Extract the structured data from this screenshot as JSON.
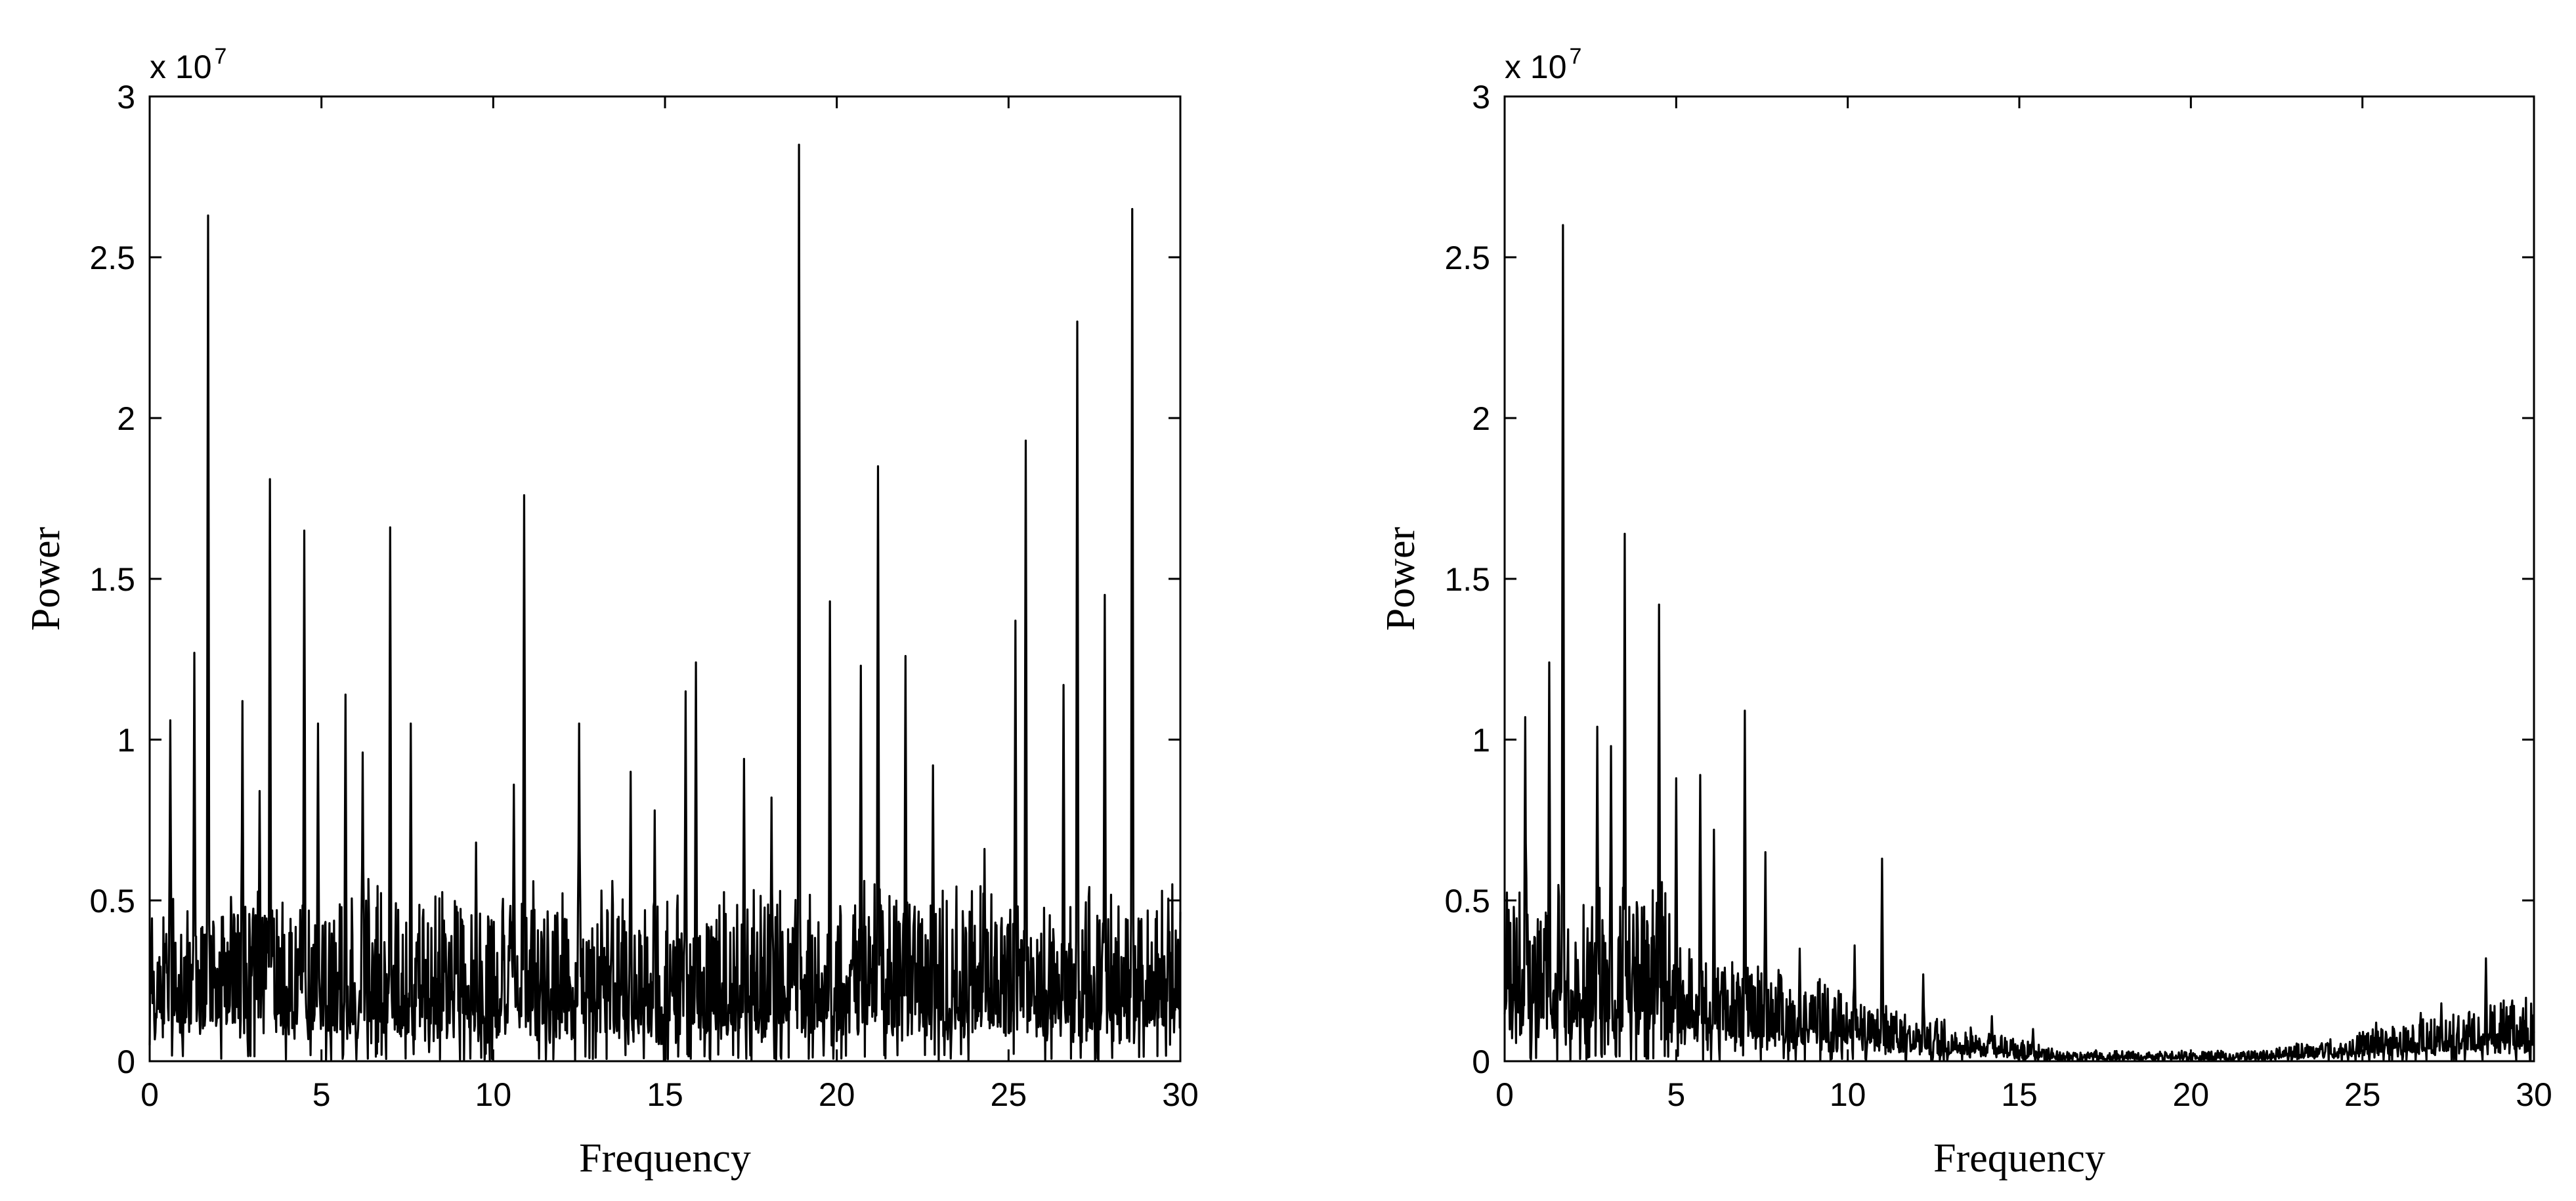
{
  "chart_data": [
    {
      "type": "line",
      "title": "",
      "xlabel": "Frequency",
      "ylabel": "Power",
      "xlim": [
        0,
        30
      ],
      "ylim": [
        0,
        3
      ],
      "y_multiplier_label": "x 10",
      "y_multiplier_exponent": "7",
      "xticks": [
        "0",
        "5",
        "10",
        "15",
        "20",
        "25",
        "30"
      ],
      "yticks": [
        "0",
        "0.5",
        "1",
        "1.5",
        "2",
        "2.5",
        "3"
      ],
      "grid": false,
      "series": [
        {
          "color": "#000000",
          "noise_level": 0.32,
          "baseline_decay": false,
          "peaks": [
            {
              "x": 0.6,
              "y": 1.06
            },
            {
              "x": 1.3,
              "y": 1.27
            },
            {
              "x": 1.7,
              "y": 2.63
            },
            {
              "x": 2.7,
              "y": 1.12
            },
            {
              "x": 3.2,
              "y": 0.84
            },
            {
              "x": 3.5,
              "y": 1.81
            },
            {
              "x": 4.5,
              "y": 1.65
            },
            {
              "x": 4.9,
              "y": 1.05
            },
            {
              "x": 5.7,
              "y": 1.14
            },
            {
              "x": 6.2,
              "y": 0.96
            },
            {
              "x": 7.0,
              "y": 1.66
            },
            {
              "x": 7.6,
              "y": 1.05
            },
            {
              "x": 9.5,
              "y": 0.68
            },
            {
              "x": 10.6,
              "y": 0.86
            },
            {
              "x": 10.9,
              "y": 1.76
            },
            {
              "x": 12.5,
              "y": 1.05
            },
            {
              "x": 14.0,
              "y": 0.9
            },
            {
              "x": 14.7,
              "y": 0.78
            },
            {
              "x": 15.6,
              "y": 1.15
            },
            {
              "x": 15.9,
              "y": 1.24
            },
            {
              "x": 17.3,
              "y": 0.94
            },
            {
              "x": 18.1,
              "y": 0.82
            },
            {
              "x": 18.9,
              "y": 2.85
            },
            {
              "x": 19.8,
              "y": 1.43
            },
            {
              "x": 20.7,
              "y": 1.23
            },
            {
              "x": 21.2,
              "y": 1.85
            },
            {
              "x": 22.0,
              "y": 1.26
            },
            {
              "x": 22.8,
              "y": 0.92
            },
            {
              "x": 24.3,
              "y": 0.66
            },
            {
              "x": 25.2,
              "y": 1.37
            },
            {
              "x": 25.5,
              "y": 1.93
            },
            {
              "x": 26.6,
              "y": 1.17
            },
            {
              "x": 27.0,
              "y": 2.3
            },
            {
              "x": 27.8,
              "y": 1.45
            },
            {
              "x": 28.6,
              "y": 2.65
            }
          ]
        }
      ]
    },
    {
      "type": "line",
      "title": "",
      "xlabel": "Frequency",
      "ylabel": "Power",
      "xlim": [
        0,
        30
      ],
      "ylim": [
        0,
        3
      ],
      "y_multiplier_label": "x 10",
      "y_multiplier_exponent": "7",
      "xticks": [
        "0",
        "5",
        "10",
        "15",
        "20",
        "25",
        "30"
      ],
      "yticks": [
        "0",
        "0.5",
        "1",
        "1.5",
        "2",
        "2.5",
        "3"
      ],
      "grid": false,
      "series": [
        {
          "color": "#000000",
          "noise_level": 0.32,
          "baseline_decay": true,
          "peaks": [
            {
              "x": 0.6,
              "y": 1.07
            },
            {
              "x": 1.3,
              "y": 1.24
            },
            {
              "x": 1.7,
              "y": 2.6
            },
            {
              "x": 2.7,
              "y": 1.04
            },
            {
              "x": 3.1,
              "y": 0.98
            },
            {
              "x": 3.5,
              "y": 1.64
            },
            {
              "x": 4.5,
              "y": 1.42
            },
            {
              "x": 5.0,
              "y": 0.88
            },
            {
              "x": 5.7,
              "y": 0.89
            },
            {
              "x": 6.1,
              "y": 0.72
            },
            {
              "x": 7.0,
              "y": 1.09
            },
            {
              "x": 7.6,
              "y": 0.65
            },
            {
              "x": 8.6,
              "y": 0.35
            },
            {
              "x": 10.2,
              "y": 0.36
            },
            {
              "x": 11.0,
              "y": 0.63
            },
            {
              "x": 12.2,
              "y": 0.27
            },
            {
              "x": 14.2,
              "y": 0.14
            },
            {
              "x": 15.4,
              "y": 0.1
            },
            {
              "x": 25.4,
              "y": 0.12
            },
            {
              "x": 26.7,
              "y": 0.15
            },
            {
              "x": 27.3,
              "y": 0.18
            },
            {
              "x": 28.1,
              "y": 0.15
            },
            {
              "x": 28.6,
              "y": 0.32
            }
          ]
        }
      ]
    }
  ]
}
